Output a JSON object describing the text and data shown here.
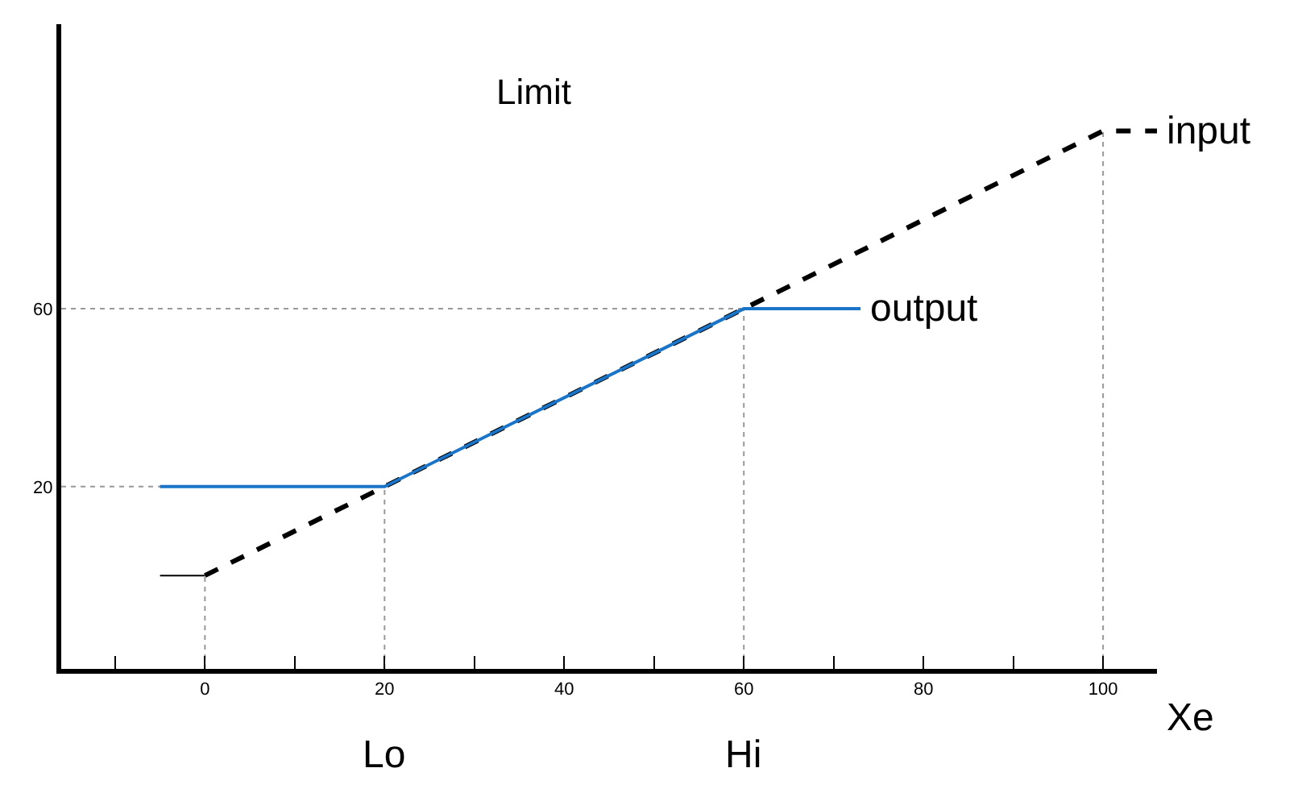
{
  "chart_data": {
    "type": "line",
    "title": "Limit",
    "xlabel": "Xe",
    "series": [
      {
        "name": "input",
        "color": "#000000",
        "line_style": "dashed",
        "x": [
          0,
          20,
          60,
          100,
          106
        ],
        "values": [
          0,
          20,
          60,
          100,
          100
        ]
      },
      {
        "color": "#000000",
        "line_style": "solid",
        "x": [
          -5,
          0
        ],
        "values": [
          0,
          0
        ]
      },
      {
        "name": "output",
        "color": "#1a75c8",
        "line_style": "solid",
        "x": [
          -5,
          20,
          60,
          73
        ],
        "values": [
          20,
          20,
          60,
          60
        ]
      }
    ],
    "xlim": [
      -16,
      106
    ],
    "ylim": [
      -21,
      124
    ],
    "xticks": [
      {
        "value": -10,
        "label": null
      },
      0,
      {
        "value": 10,
        "label": null
      },
      20,
      {
        "value": 30,
        "label": null
      },
      40,
      {
        "value": 50,
        "label": null
      },
      60,
      {
        "value": 70,
        "label": null
      },
      80,
      {
        "value": 90,
        "label": null
      },
      100
    ],
    "yticks": [
      20,
      60
    ],
    "ref_lines": [
      {
        "axis": "x",
        "value": 0,
        "color": "#999999",
        "line_style": "dotted"
      },
      {
        "axis": "x",
        "value": 20,
        "label": "Lo",
        "color": "#999999",
        "line_style": "dotted"
      },
      {
        "axis": "x",
        "value": 60,
        "label": "Hi",
        "color": "#999999",
        "line_style": "dotted"
      },
      {
        "axis": "x",
        "value": 100,
        "color": "#999999",
        "line_style": "dotted"
      },
      {
        "axis": "y",
        "value": 20,
        "color": "#999999",
        "line_style": "dotted"
      },
      {
        "axis": "y",
        "value": 60,
        "color": "#999999",
        "line_style": "dotted"
      }
    ],
    "grid": false,
    "legend": false,
    "marker": "none"
  }
}
